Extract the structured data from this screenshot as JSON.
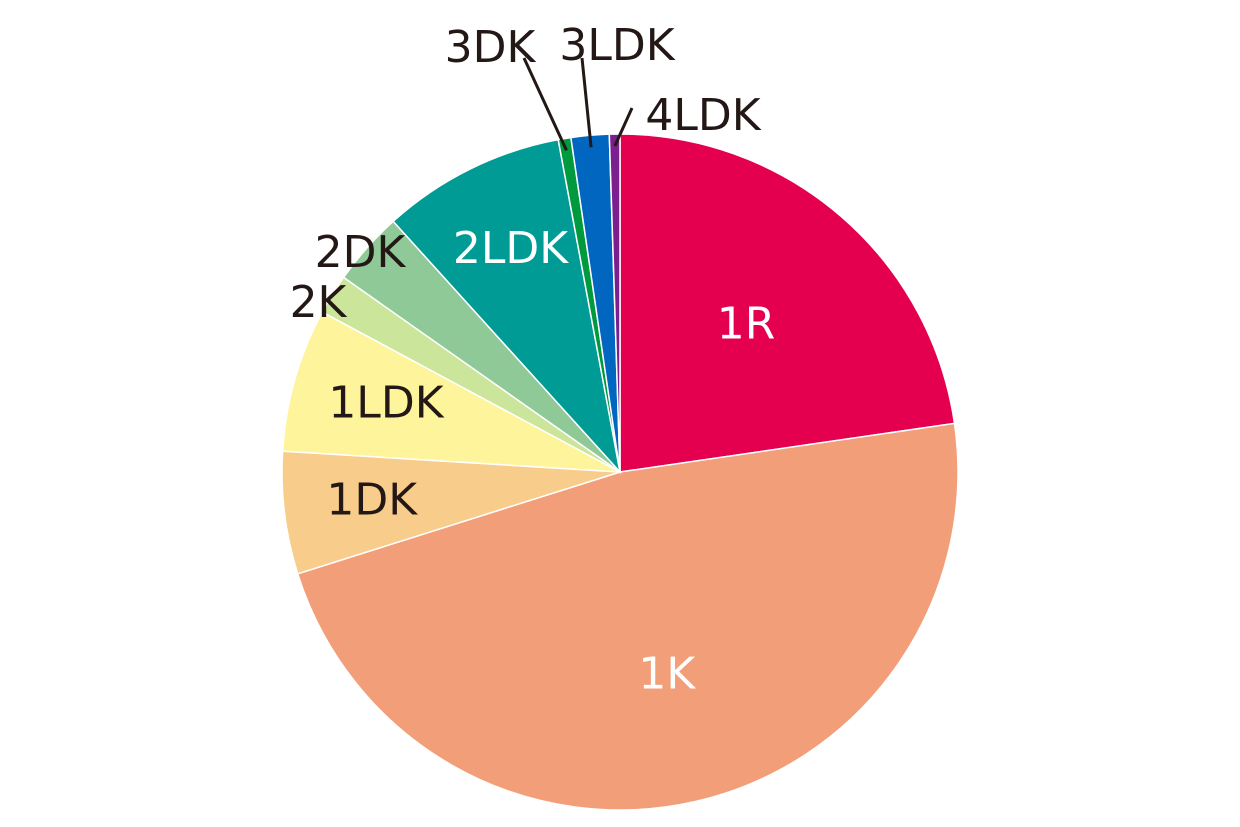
{
  "chart_data": {
    "type": "pie",
    "title": "",
    "slices": [
      {
        "label": "1R",
        "value": 22.5,
        "color": "#e4004f",
        "text_color": "#ffffff"
      },
      {
        "label": "1K",
        "value": 47.0,
        "color": "#f29e79",
        "text_color": "#ffffff"
      },
      {
        "label": "1DK",
        "value": 5.8,
        "color": "#f8cd8b",
        "text_color": "#231815"
      },
      {
        "label": "1LDK",
        "value": 6.8,
        "color": "#fdf49b",
        "text_color": "#231815"
      },
      {
        "label": "2K",
        "value": 1.9,
        "color": "#cbe59a",
        "text_color": "#231815"
      },
      {
        "label": "2DK",
        "value": 3.5,
        "color": "#8fc997",
        "text_color": "#231815"
      },
      {
        "label": "2LDK",
        "value": 8.7,
        "color": "#009b94",
        "text_color": "#ffffff"
      },
      {
        "label": "3DK",
        "value": 0.6,
        "color": "#009a3e",
        "text_color": "#231815"
      },
      {
        "label": "3LDK",
        "value": 1.8,
        "color": "#0066bf",
        "text_color": "#231815"
      },
      {
        "label": "4LDK",
        "value": 0.5,
        "color": "#7b1f8e",
        "text_color": "#231815"
      }
    ]
  }
}
